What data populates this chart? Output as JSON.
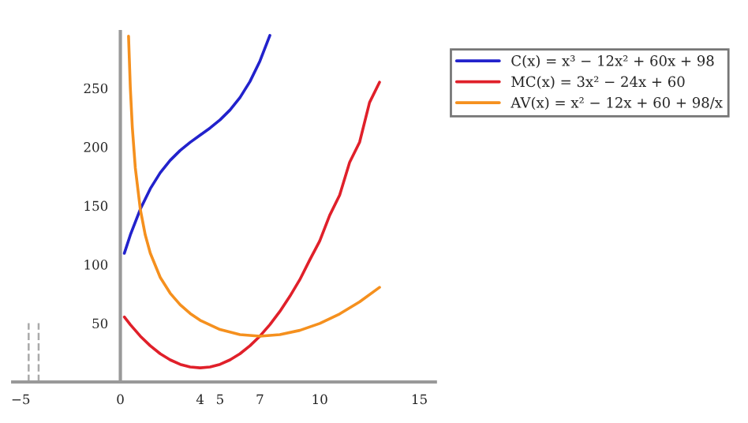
{
  "chart_data": {
    "type": "line",
    "xlim": [
      -5.4,
      15.8
    ],
    "ylim": [
      0,
      298
    ],
    "xticks": [
      {
        "value": -5,
        "label": "−5"
      },
      0,
      4,
      5,
      7,
      10,
      15
    ],
    "yticks": [
      50,
      100,
      150,
      200,
      250
    ],
    "grid": false,
    "legend": "right",
    "marker": "none",
    "line_style": "solid",
    "series": [
      {
        "name": "C(x) = x³ − 12x² + 60x + 98",
        "color": "#2222cc",
        "x": [
          0.2,
          0.5,
          1,
          1.5,
          2,
          2.5,
          3,
          3.5,
          4,
          4.5,
          5,
          5.5,
          6,
          6.5,
          7,
          7.5
        ],
        "values": [
          109.5,
          125.1,
          147,
          164.4,
          178,
          188.6,
          197,
          203.9,
          210,
          216.1,
          223,
          231.4,
          242,
          255.6,
          273,
          294.9
        ]
      },
      {
        "name": "MC(x) = 3x² − 24x + 60",
        "color": "#e0202a",
        "x": [
          0.2,
          0.5,
          1,
          1.5,
          2,
          2.5,
          3,
          3.5,
          4,
          4.5,
          5,
          5.5,
          6,
          6.5,
          7,
          7.5,
          8,
          8.5,
          9,
          9.5,
          10,
          10.5,
          11,
          11.5,
          12,
          12.5,
          13
        ],
        "values": [
          55.3,
          48.8,
          39,
          30.8,
          24,
          18.8,
          15,
          12.8,
          12,
          12.8,
          15,
          18.8,
          24,
          30.8,
          39,
          48.8,
          60,
          72.8,
          87,
          103.8,
          120,
          141.8,
          159,
          186.8,
          204,
          237.8,
          255
        ]
      },
      {
        "name": "AV(x) = x² − 12x + 60 + 98/x",
        "color": "#f5901e",
        "x": [
          0.41,
          0.5,
          0.6,
          0.75,
          1,
          1.25,
          1.5,
          2,
          2.5,
          3,
          3.5,
          4,
          5,
          6,
          7,
          8,
          9,
          10,
          11,
          12,
          13
        ],
        "values": [
          294.3,
          250.3,
          216.5,
          182.2,
          147,
          125,
          109.6,
          89,
          75.5,
          65.7,
          58.3,
          52.5,
          44.6,
          40.3,
          39,
          40.3,
          43.9,
          49.8,
          57.9,
          68.2,
          80.5
        ]
      },
      {
        "color": "#aaaaaa",
        "line_style": "dashed",
        "x": [
          -4.6,
          -4.6
        ],
        "values": [
          0,
          50
        ]
      },
      {
        "color": "#aaaaaa",
        "line_style": "dashed",
        "x": [
          -4.1,
          -4.1
        ],
        "values": [
          0,
          50
        ]
      }
    ]
  }
}
